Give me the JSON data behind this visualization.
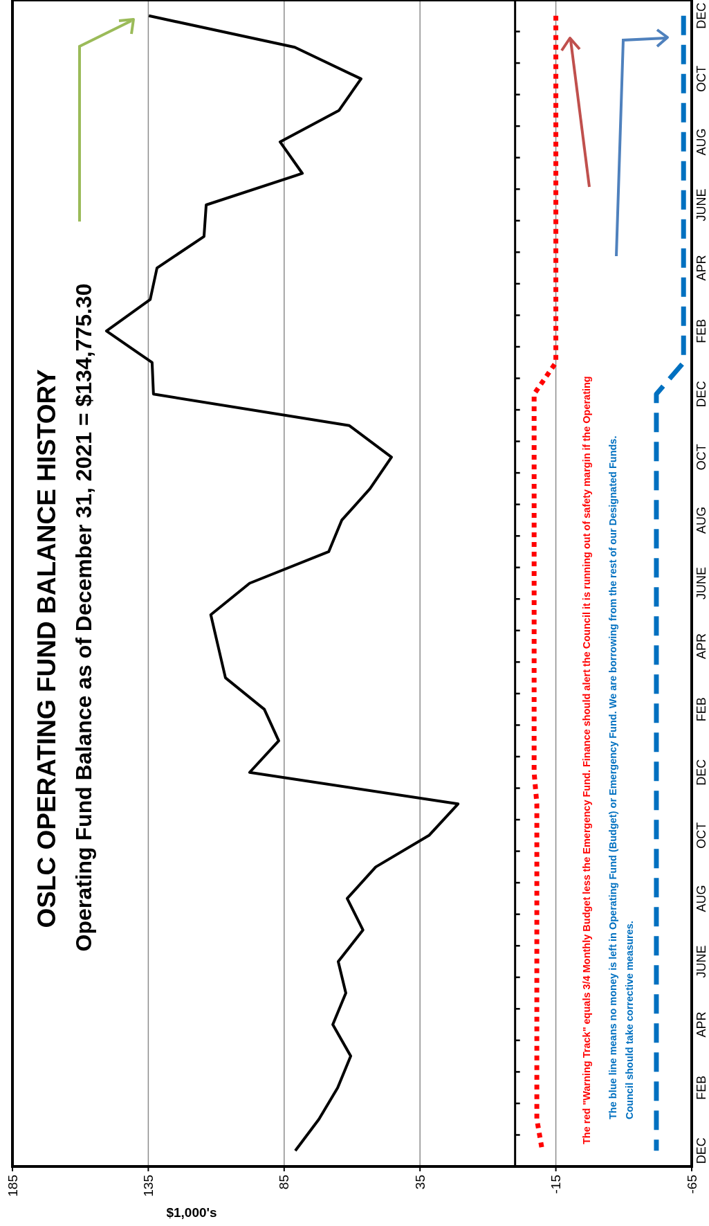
{
  "chart_data": {
    "type": "line",
    "orientation": "horizontal",
    "title": "OSLC OPERATING FUND BALANCE HISTORY",
    "subtitle": "Operating Fund Balance as of December 31, 2021 = $134,775.30",
    "xlabel": "$1,000's",
    "categories": [
      "DEC",
      null,
      "OCT",
      null,
      "AUG",
      null,
      "JUNE",
      null,
      "APR",
      null,
      "FEB",
      null,
      "DEC",
      null,
      "OCT",
      null,
      "AUG",
      null,
      "JUNE",
      null,
      "APR",
      null,
      "FEB",
      null,
      "DEC",
      null,
      "OCT",
      null,
      "AUG",
      null,
      "JUNE",
      null,
      "APR",
      null,
      "FEB",
      null,
      "DEC"
    ],
    "series": [
      {
        "color": "#000000",
        "line_style": "solid",
        "values": [
          134.8,
          81.1,
          56.7,
          64.8,
          86.5,
          78.3,
          113.7,
          114.5,
          131.8,
          134.3,
          150.4,
          133.6,
          133.1,
          61.0,
          45.5,
          53.4,
          63.8,
          68.6,
          97.7,
          112.0,
          109.3,
          106.6,
          92.3,
          87.0,
          97.7,
          21.0,
          31.7,
          51.3,
          61.8,
          56.0,
          65.1,
          62.3,
          67.1,
          60.5,
          65.3,
          72.2,
          80.9
        ]
      },
      {
        "color": "#ff0000",
        "line_style": "dotted",
        "values": [
          -15,
          -15,
          -15,
          -15,
          -15,
          -15,
          -15,
          -15,
          -15,
          -15,
          -15,
          -15,
          -7,
          -7,
          -7,
          -7,
          -7,
          -7,
          -7,
          -7,
          -7,
          -7,
          -7,
          -7,
          -7,
          -8,
          -8,
          -8,
          -8,
          -8,
          -8,
          -8,
          -8,
          -8,
          -8,
          -8,
          -10
        ]
      },
      {
        "color": "#0070c0",
        "line_style": "dashed",
        "values": [
          -62,
          -62,
          -62,
          -62,
          -62,
          -62,
          -62,
          -62,
          -62,
          -62,
          -62,
          -62,
          -52,
          -52,
          -52,
          -52,
          -52,
          -52,
          -52,
          -52,
          -52,
          -52,
          -52,
          -52,
          -52,
          -52,
          -52,
          -52,
          -52,
          -52,
          -52,
          -52,
          -52,
          -52,
          -52,
          -52,
          -52
        ]
      }
    ],
    "xlim": [
      185,
      -65
    ],
    "xticks": [
      185,
      135,
      85,
      35,
      -15,
      -65
    ],
    "grid": "x",
    "ref_lines": [
      {
        "axis": "x",
        "value": 0,
        "color": "#000000"
      }
    ],
    "annotations": [
      "The red \"Warning Track\" equals 3/4 Monthly Budget less the Emergency Fund.  Finance should alert the Council it is running out of safety margin if the Operating",
      "The blue line means no money is left in Operating Fund (Budget) or Emergency Fund.  We are borrowing from the rest of our Designated Funds.",
      "Council should take corrective measures."
    ]
  }
}
